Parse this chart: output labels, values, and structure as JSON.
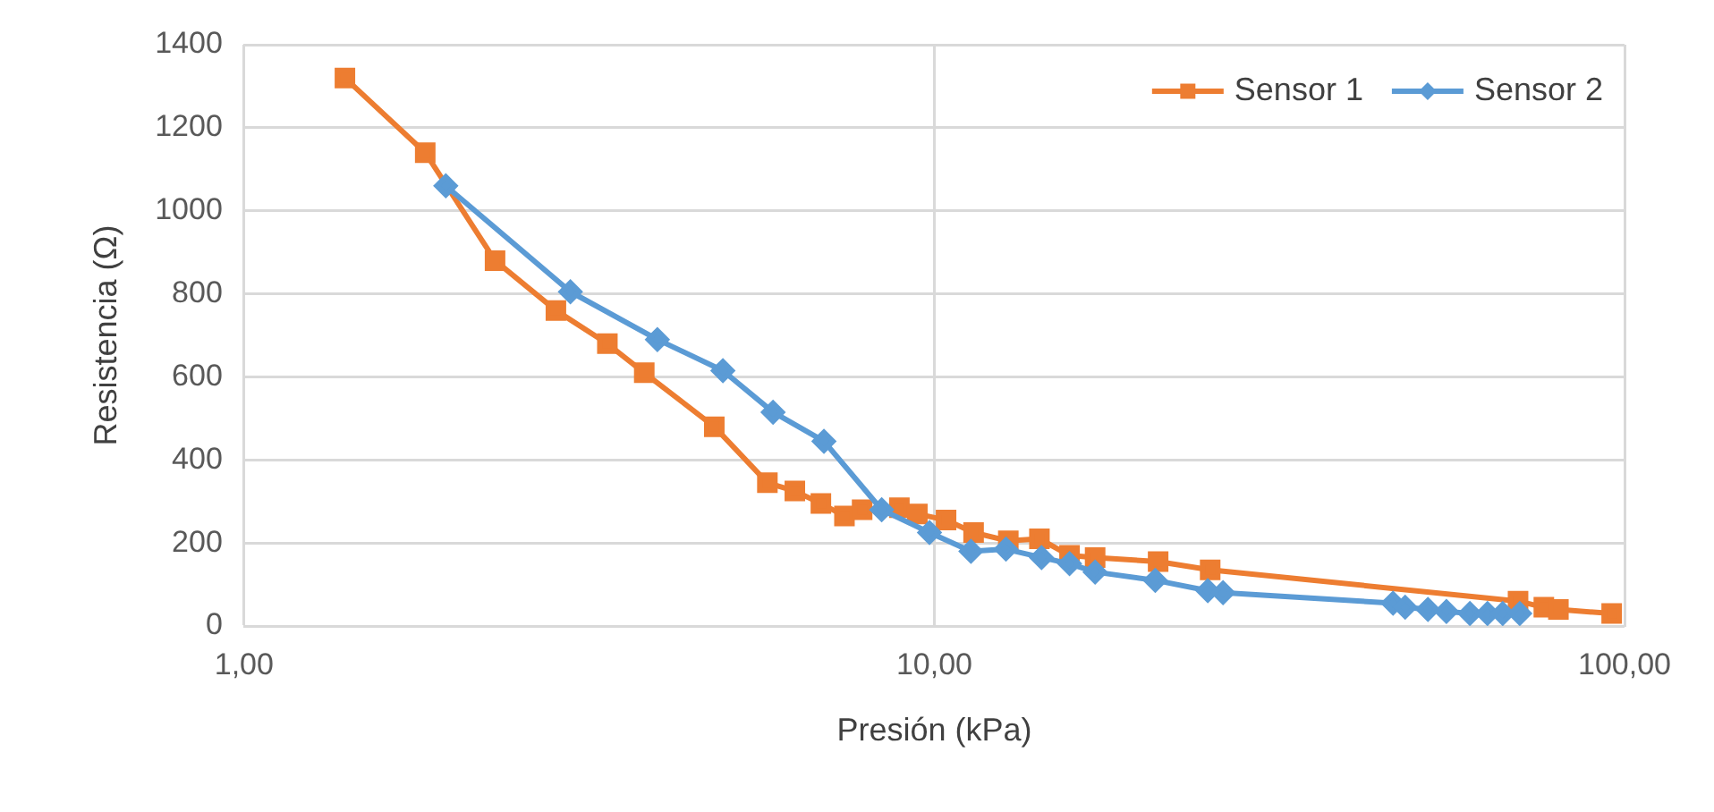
{
  "chart_data": {
    "type": "line",
    "xlabel": "Presión (kPa)",
    "ylabel": "Resistencia (Ω)",
    "log": "x",
    "grid": true,
    "legend": "top right",
    "line_style": "solid",
    "xlim": [
      1,
      100
    ],
    "xticks": [
      {
        "value": 1,
        "label": "1,00"
      },
      {
        "value": 10,
        "label": "10,00"
      },
      {
        "value": 100,
        "label": "100,00"
      }
    ],
    "ylim": [
      0,
      1400
    ],
    "yticks": [
      0,
      200,
      400,
      600,
      800,
      1000,
      1200,
      1400
    ],
    "series": [
      {
        "name": "Sensor 1",
        "color": "#ed7d31",
        "marker": "square",
        "x": [
          1.4,
          1.83,
          2.31,
          2.83,
          3.36,
          3.8,
          4.8,
          5.73,
          6.28,
          6.85,
          7.41,
          7.86,
          8.9,
          9.45,
          10.4,
          11.4,
          12.8,
          14.2,
          15.7,
          17.1,
          21.1,
          25.1,
          70.1,
          76.4,
          80.2,
          95.8
        ],
        "values": [
          1320,
          1140,
          880,
          760,
          680,
          610,
          480,
          345,
          325,
          295,
          265,
          280,
          285,
          270,
          255,
          225,
          205,
          210,
          170,
          165,
          155,
          135,
          60,
          45,
          40,
          30
        ]
      },
      {
        "name": "Sensor 2",
        "color": "#5b9bd5",
        "marker": "diamond",
        "x": [
          1.96,
          2.97,
          3.97,
          4.94,
          5.84,
          6.92,
          8.39,
          9.84,
          11.3,
          12.7,
          14.3,
          15.7,
          17.1,
          20.9,
          24.9,
          26.2,
          46.2,
          48.1,
          51.9,
          55.2,
          59.7,
          63.3,
          66.6,
          70.5
        ],
        "values": [
          1060,
          805,
          690,
          615,
          515,
          445,
          280,
          225,
          180,
          185,
          165,
          150,
          130,
          110,
          85,
          80,
          55,
          45,
          40,
          35,
          30,
          30,
          30,
          30
        ]
      }
    ]
  }
}
